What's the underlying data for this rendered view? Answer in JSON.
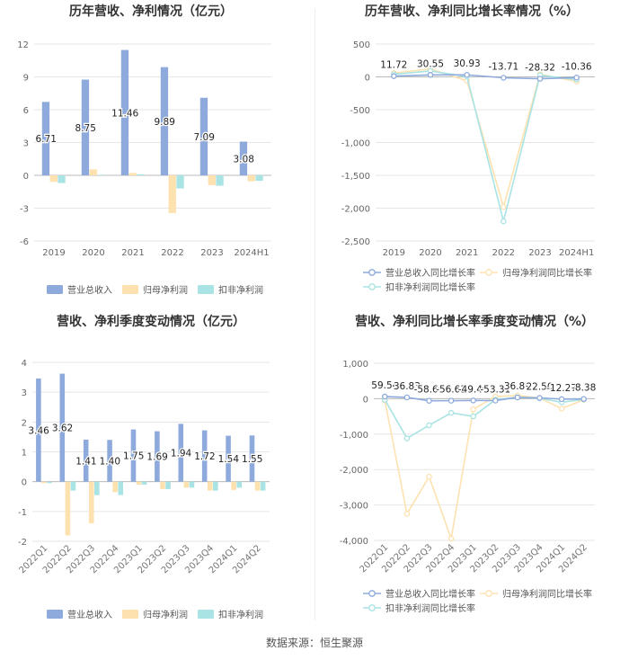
{
  "source": "数据来源：恒生聚源",
  "colors": {
    "revenue": "#8eaadc",
    "net": "#fde2b0",
    "deducted": "#a9e3e3",
    "grid": "#e6e6e6",
    "axis": "#666666"
  },
  "chart_data": [
    {
      "id": "annual_amount",
      "type": "bar",
      "title": "历年营收、净利情况（亿元）",
      "categories": [
        "2019",
        "2020",
        "2021",
        "2022",
        "2023",
        "2024H1"
      ],
      "ylim": [
        -6,
        12
      ],
      "yticks": [
        -6,
        -3,
        0,
        3,
        6,
        9,
        12
      ],
      "grid": true,
      "legend_position": "bottom",
      "series": [
        {
          "name": "营业总收入",
          "values": [
            6.71,
            8.75,
            11.46,
            9.89,
            7.09,
            3.08
          ],
          "labels": [
            "6.71",
            "8.75",
            "11.46",
            "9.89",
            "7.09",
            "3.08"
          ]
        },
        {
          "name": "归母净利润",
          "values": [
            -0.6,
            0.55,
            0.22,
            -3.45,
            -0.9,
            -0.55
          ]
        },
        {
          "name": "扣非净利润",
          "values": [
            -0.7,
            0.05,
            0.1,
            -1.2,
            -0.95,
            -0.5
          ]
        }
      ]
    },
    {
      "id": "annual_growth",
      "type": "line",
      "title": "历年营收、净利同比增长率情况（%）",
      "categories": [
        "2019",
        "2020",
        "2021",
        "2022",
        "2023",
        "2024H1"
      ],
      "ylim": [
        -2500,
        500
      ],
      "yticks": [
        -2500,
        -2000,
        -1500,
        -1000,
        -500,
        0,
        500
      ],
      "ytick_labels": [
        "-2,500",
        "-2,000",
        "-1,500",
        "-1,000",
        "-500",
        "0",
        "500"
      ],
      "grid": true,
      "legend_position": "bottom",
      "series": [
        {
          "name": "营业总收入同比增长率",
          "values": [
            11.72,
            30.55,
            30.93,
            -13.71,
            -28.32,
            -10.36
          ],
          "labels": [
            "11.72",
            "30.55",
            "30.93",
            "-13.71",
            "-28.32",
            "-10.36"
          ]
        },
        {
          "name": "归母净利润同比增长率",
          "values": [
            60,
            120,
            -60,
            -1980,
            40,
            -70
          ]
        },
        {
          "name": "扣非净利润同比增长率",
          "values": [
            40,
            90,
            5,
            -2200,
            25,
            -40
          ]
        }
      ]
    },
    {
      "id": "quarterly_amount",
      "type": "bar",
      "title": "营收、净利季度变动情况（亿元）",
      "categories": [
        "2022Q1",
        "2022Q2",
        "2022Q3",
        "2022Q4",
        "2023Q1",
        "2023Q2",
        "2023Q3",
        "2023Q4",
        "2024Q1",
        "2024Q2"
      ],
      "ylim": [
        -2,
        4
      ],
      "yticks": [
        -2,
        -1,
        0,
        1,
        2,
        3,
        4
      ],
      "grid": true,
      "legend_position": "bottom",
      "series": [
        {
          "name": "营业总收入",
          "values": [
            3.46,
            3.62,
            1.41,
            1.4,
            1.75,
            1.69,
            1.94,
            1.72,
            1.54,
            1.55
          ],
          "labels": [
            "3.46",
            "3.62",
            "1.41",
            "1.40",
            "1.75",
            "1.69",
            "1.94",
            "1.72",
            "1.54",
            "1.55"
          ]
        },
        {
          "name": "归母净利润",
          "values": [
            -0.05,
            -1.8,
            -1.4,
            -0.35,
            -0.1,
            -0.25,
            -0.2,
            -0.3,
            -0.28,
            -0.3
          ]
        },
        {
          "name": "扣非净利润",
          "values": [
            -0.05,
            -0.3,
            -0.45,
            -0.45,
            -0.1,
            -0.25,
            -0.2,
            -0.3,
            -0.2,
            -0.3
          ]
        }
      ]
    },
    {
      "id": "quarterly_growth",
      "type": "line",
      "title": "营收、净利同比增长率季度变动情况（%）",
      "categories": [
        "2022Q1",
        "2022Q2",
        "2022Q3",
        "2022Q4",
        "2023Q1",
        "2023Q2",
        "2023Q3",
        "2023Q4",
        "2024Q1",
        "2024Q2"
      ],
      "ylim": [
        -4000,
        1000
      ],
      "yticks": [
        -4000,
        -3000,
        -2000,
        -1000,
        0,
        1000
      ],
      "ytick_labels": [
        "-4,000",
        "-3,000",
        "-2,000",
        "-1,000",
        "0",
        "1,000"
      ],
      "grid": true,
      "legend_position": "bottom",
      "series": [
        {
          "name": "营业总收入同比增长率",
          "values": [
            59.54,
            36.83,
            -58.66,
            -56.63,
            -49.4,
            -53.31,
            36.89,
            22.5,
            -12.27,
            -8.38
          ],
          "labels": [
            "59.54",
            "36.83",
            "-58.66",
            "-56.63",
            "-49.40",
            "-53.31",
            "36.89",
            "22.50",
            "-12.27",
            "-8.38"
          ]
        },
        {
          "name": "归母净利润同比增长率",
          "values": [
            -50,
            -3250,
            -2200,
            -3950,
            -300,
            60,
            90,
            20,
            -280,
            -30
          ]
        },
        {
          "name": "扣非净利润同比增长率",
          "values": [
            -30,
            -1120,
            -750,
            -400,
            -500,
            -30,
            40,
            10,
            -100,
            -20
          ]
        }
      ]
    }
  ]
}
